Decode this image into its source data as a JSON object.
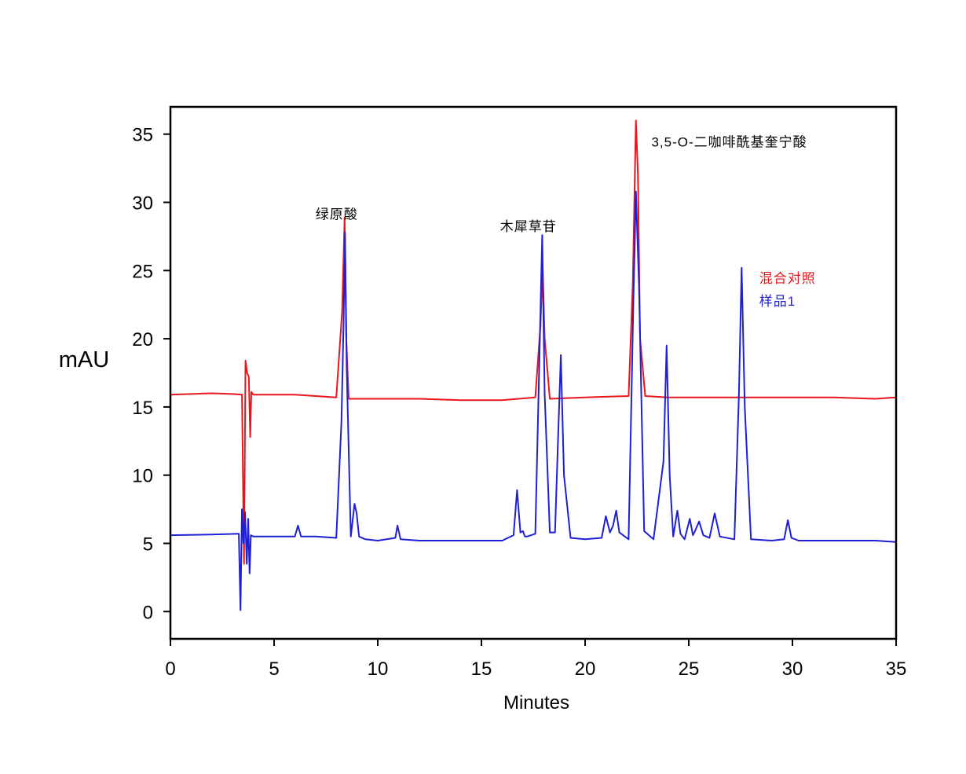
{
  "chart_data": {
    "type": "line",
    "title": "",
    "xlabel": "Minutes",
    "ylabel": "mAU",
    "xlim": [
      0,
      35
    ],
    "ylim": [
      -2,
      37
    ],
    "xticks": [
      0,
      5,
      10,
      15,
      20,
      25,
      30,
      35
    ],
    "xtick_labels": [
      "0",
      "5",
      "10",
      "15",
      "20",
      "25",
      "30",
      "35"
    ],
    "yticks": [
      0,
      5,
      10,
      15,
      20,
      25,
      30,
      35
    ],
    "ytick_labels": [
      "0",
      "5",
      "10",
      "15",
      "20",
      "25",
      "30",
      "35"
    ],
    "grid": false,
    "legend_position": "right",
    "series": [
      {
        "name": "混合对照",
        "color": "#e8161b",
        "x": [
          0,
          2.0,
          3.0,
          3.45,
          3.55,
          3.62,
          3.7,
          3.78,
          3.85,
          3.9,
          4.0,
          5.0,
          6.0,
          7.0,
          8.0,
          8.28,
          8.4,
          8.48,
          8.6,
          10,
          12,
          14,
          16,
          17.6,
          17.85,
          17.95,
          18.05,
          18.3,
          20,
          22.1,
          22.3,
          22.45,
          22.55,
          22.65,
          22.9,
          24,
          26,
          28,
          30,
          32,
          34,
          35
        ],
        "values": [
          15.9,
          16.0,
          15.95,
          15.9,
          3.5,
          18.4,
          17.5,
          17.2,
          12.8,
          16.1,
          15.9,
          15.9,
          15.9,
          15.8,
          15.7,
          22.0,
          28.9,
          20.0,
          15.6,
          15.6,
          15.6,
          15.5,
          15.5,
          15.7,
          21.0,
          25.3,
          20.0,
          15.6,
          15.7,
          15.8,
          24.0,
          36.0,
          32.0,
          20.0,
          15.8,
          15.7,
          15.7,
          15.7,
          15.7,
          15.7,
          15.6,
          15.7
        ]
      },
      {
        "name": "样品1",
        "color": "#1f1fd6",
        "x": [
          0,
          2.0,
          3.3,
          3.38,
          3.45,
          3.52,
          3.6,
          3.68,
          3.75,
          3.82,
          3.88,
          4.0,
          5.0,
          6.0,
          6.15,
          6.3,
          7.0,
          8.0,
          8.25,
          8.35,
          8.42,
          8.5,
          8.7,
          8.88,
          8.98,
          9.1,
          9.4,
          10.0,
          10.85,
          10.95,
          11.1,
          12.0,
          14.0,
          16.0,
          16.55,
          16.72,
          16.88,
          17.0,
          17.1,
          17.2,
          17.6,
          17.82,
          17.93,
          18.05,
          18.3,
          18.55,
          18.68,
          18.83,
          18.98,
          19.3,
          20.0,
          20.8,
          21.0,
          21.2,
          21.35,
          21.5,
          21.65,
          22.1,
          22.32,
          22.45,
          22.6,
          22.85,
          23.3,
          23.78,
          23.93,
          24.08,
          24.25,
          24.45,
          24.6,
          24.8,
          25.05,
          25.2,
          25.3,
          25.5,
          25.7,
          26.0,
          26.25,
          26.5,
          27.2,
          27.42,
          27.55,
          27.7,
          28.0,
          29.0,
          29.6,
          29.78,
          29.95,
          30.3,
          32.0,
          34.0,
          35.0
        ],
        "values": [
          5.6,
          5.65,
          5.7,
          0.1,
          7.5,
          5.0,
          7.3,
          3.5,
          6.8,
          2.8,
          5.6,
          5.5,
          5.5,
          5.5,
          6.3,
          5.5,
          5.5,
          5.4,
          14.0,
          21.0,
          27.8,
          18.0,
          5.5,
          7.9,
          7.2,
          5.5,
          5.3,
          5.2,
          5.4,
          6.3,
          5.3,
          5.2,
          5.2,
          5.2,
          5.6,
          8.9,
          5.8,
          5.9,
          5.5,
          5.5,
          5.7,
          20.0,
          27.6,
          16.0,
          5.8,
          5.8,
          12.0,
          18.8,
          10.0,
          5.4,
          5.3,
          5.4,
          7.0,
          5.8,
          6.3,
          7.4,
          5.8,
          5.3,
          22.0,
          30.8,
          24.0,
          5.9,
          5.3,
          11.0,
          19.5,
          10.0,
          5.5,
          7.4,
          5.7,
          5.3,
          6.8,
          5.6,
          5.9,
          6.6,
          5.6,
          5.4,
          7.2,
          5.5,
          5.3,
          16.0,
          25.2,
          15.0,
          5.3,
          5.2,
          5.3,
          6.7,
          5.4,
          5.2,
          5.2,
          5.2,
          5.1
        ]
      }
    ],
    "annotations": [
      {
        "text": "绿原酸",
        "x": 7.0,
        "y": 28.8
      },
      {
        "text": "木犀草苷",
        "x": 15.9,
        "y": 27.9
      },
      {
        "text": "3,5-O-二咖啡酰基奎宁酸",
        "x": 23.2,
        "y": 34.1
      }
    ]
  }
}
